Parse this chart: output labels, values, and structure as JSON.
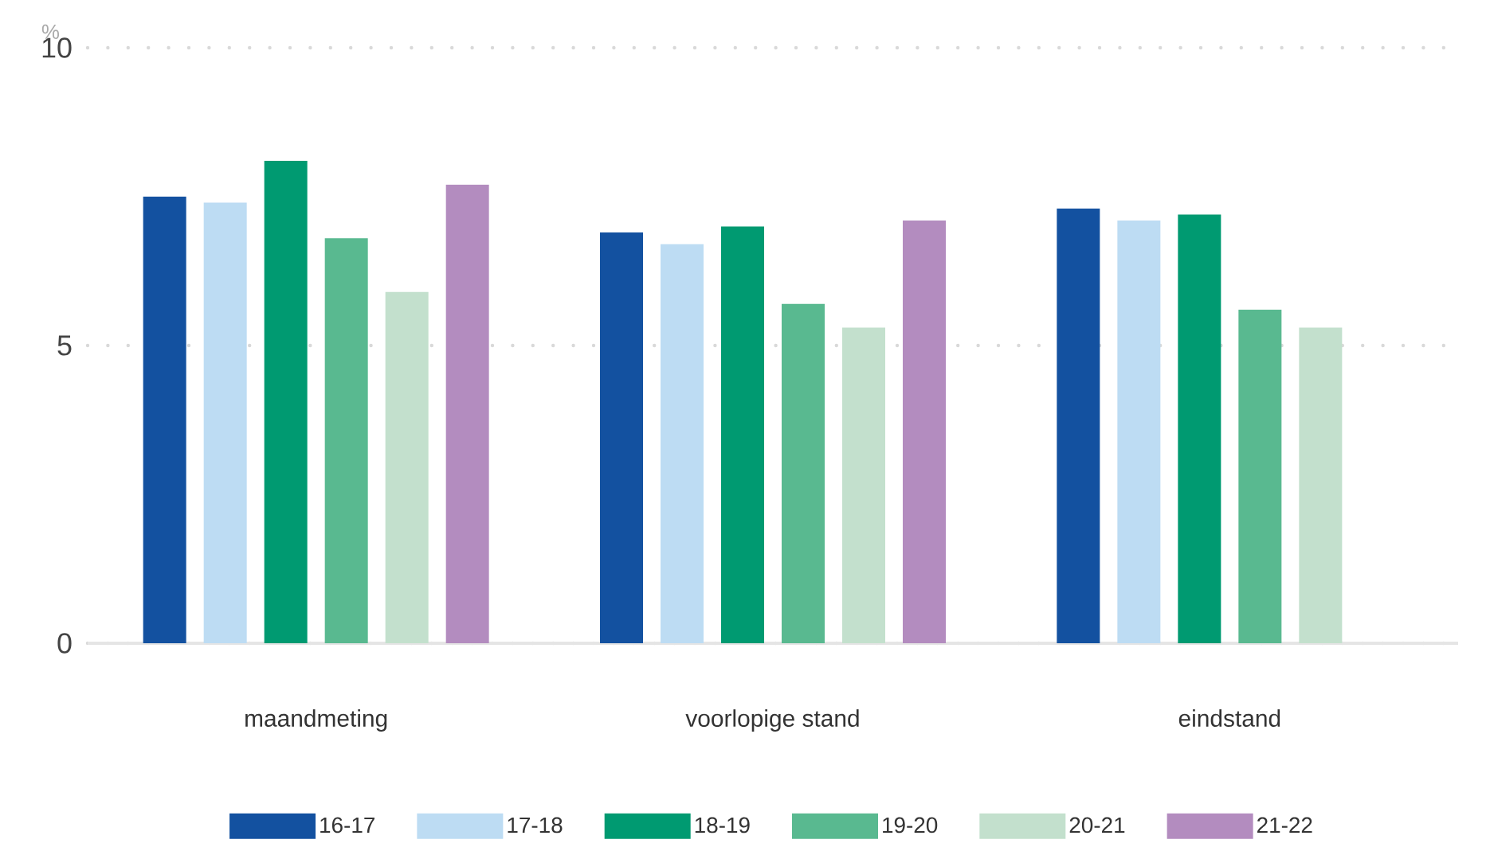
{
  "chart_data": {
    "type": "bar",
    "ylabel": "%",
    "categories": [
      "maandmeting",
      "voorlopige stand",
      "eindstand"
    ],
    "series": [
      {
        "name": "16-17",
        "color": "#1351a0",
        "values": [
          7.5,
          6.9,
          7.3
        ]
      },
      {
        "name": "17-18",
        "color": "#bddcf3",
        "values": [
          7.4,
          6.7,
          7.1
        ]
      },
      {
        "name": "18-19",
        "color": "#009a71",
        "values": [
          8.1,
          7.0,
          7.2
        ]
      },
      {
        "name": "19-20",
        "color": "#59b990",
        "values": [
          6.8,
          5.7,
          5.6
        ]
      },
      {
        "name": "20-21",
        "color": "#c3e0cd",
        "values": [
          5.9,
          5.3,
          5.3
        ]
      },
      {
        "name": "21-22",
        "color": "#b38cbf",
        "values": [
          7.7,
          7.1,
          null
        ]
      }
    ],
    "ylim": [
      0,
      10
    ],
    "yticks": [
      0,
      5,
      10
    ],
    "grid": "y",
    "legend": "bottom"
  }
}
